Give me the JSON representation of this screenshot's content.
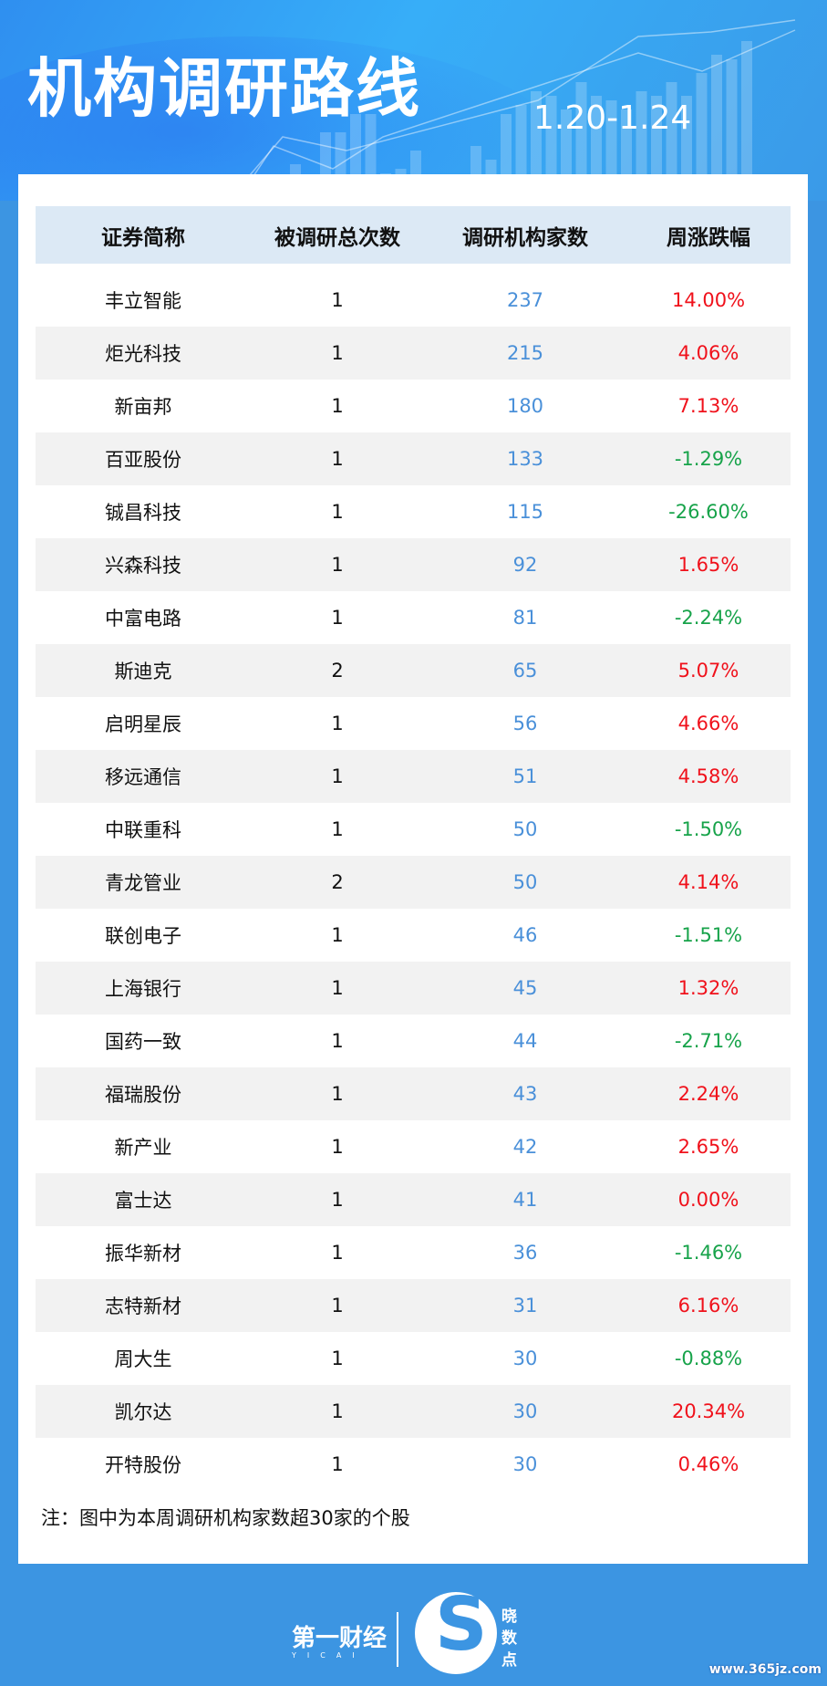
{
  "header": {
    "title": "机构调研路线",
    "date_range": "1.20-1.24"
  },
  "table": {
    "columns": [
      "证券简称",
      "被调研总次数",
      "调研机构家数",
      "周涨跌幅"
    ],
    "rows": [
      [
        "丰立智能",
        "1",
        "237",
        "14.00%"
      ],
      [
        "炬光科技",
        "1",
        "215",
        "4.06%"
      ],
      [
        "新亩邦",
        "1",
        "180",
        "7.13%"
      ],
      [
        "百亚股份",
        "1",
        "133",
        "-1.29%"
      ],
      [
        "铖昌科技",
        "1",
        "115",
        "-26.60%"
      ],
      [
        "兴森科技",
        "1",
        "92",
        "1.65%"
      ],
      [
        "中富电路",
        "1",
        "81",
        "-2.24%"
      ],
      [
        "斯迪克",
        "2",
        "65",
        "5.07%"
      ],
      [
        "启明星辰",
        "1",
        "56",
        "4.66%"
      ],
      [
        "移远通信",
        "1",
        "51",
        "4.58%"
      ],
      [
        "中联重科",
        "1",
        "50",
        "-1.50%"
      ],
      [
        "青龙管业",
        "2",
        "50",
        "4.14%"
      ],
      [
        "联创电子",
        "1",
        "46",
        "-1.51%"
      ],
      [
        "上海银行",
        "1",
        "45",
        "1.32%"
      ],
      [
        "国药一致",
        "1",
        "44",
        "-2.71%"
      ],
      [
        "福瑞股份",
        "1",
        "43",
        "2.24%"
      ],
      [
        "新产业",
        "1",
        "42",
        "2.65%"
      ],
      [
        "富士达",
        "1",
        "41",
        "0.00%"
      ],
      [
        "振华新材",
        "1",
        "36",
        "-1.46%"
      ],
      [
        "志特新材",
        "1",
        "31",
        "6.16%"
      ],
      [
        "周大生",
        "1",
        "30",
        "-0.88%"
      ],
      [
        "凯尔达",
        "1",
        "30",
        "20.34%"
      ],
      [
        "开特股份",
        "1",
        "30",
        "0.46%"
      ]
    ]
  },
  "note": "注：图中为本周调研机构家数超30家的个股",
  "footer": {
    "logo_yicai": "第一财经",
    "logo_yicai_en": "YICAI",
    "logo_xiaoshudian": "晓数点",
    "watermark": "www.365jz.com"
  },
  "colors": {
    "up": "#f0111b",
    "down": "#17a34a",
    "count": "#4a90d9",
    "background": "#3c95e2"
  }
}
